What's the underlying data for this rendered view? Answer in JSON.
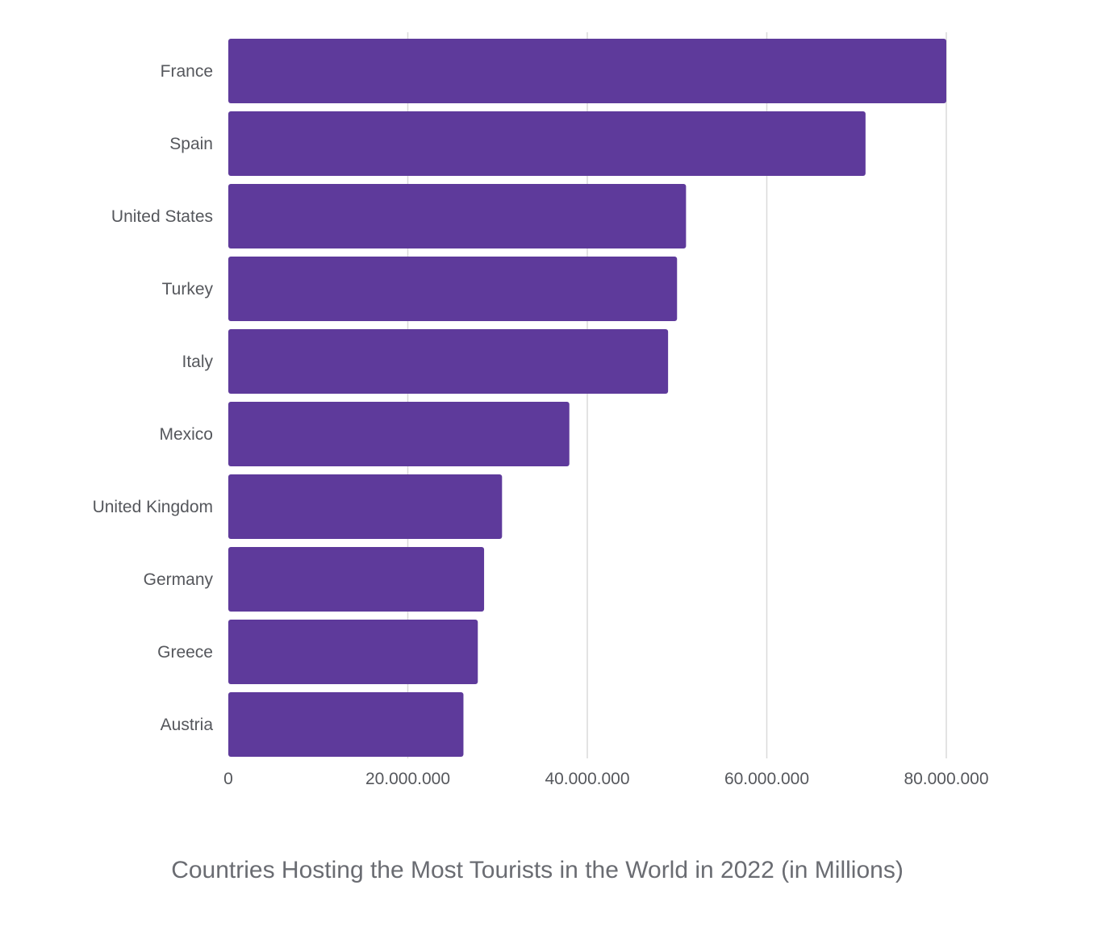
{
  "chart_data": {
    "type": "bar",
    "orientation": "horizontal",
    "categories": [
      "France",
      "Spain",
      "United States",
      "Turkey",
      "Italy",
      "Mexico",
      "United Kingdom",
      "Germany",
      "Greece",
      "Austria"
    ],
    "values": [
      80000000,
      71000000,
      51000000,
      50000000,
      49000000,
      38000000,
      30500000,
      28500000,
      27800000,
      26200000
    ],
    "xlim": [
      0,
      80000000
    ],
    "x_ticks": [
      0,
      20000000,
      40000000,
      60000000,
      80000000
    ],
    "x_tick_labels": [
      "0",
      "20.000.000",
      "40.000.000",
      "60.000.000",
      "80.000.000"
    ],
    "title": "Countries Hosting the Most Tourists in the World in 2022 (in Millions)",
    "xlabel": "",
    "ylabel": "",
    "grid": true,
    "bar_color": "#5e3a9b",
    "grid_color": "#dadada",
    "label_color": "#55575c",
    "title_color": "#6a6c72"
  }
}
